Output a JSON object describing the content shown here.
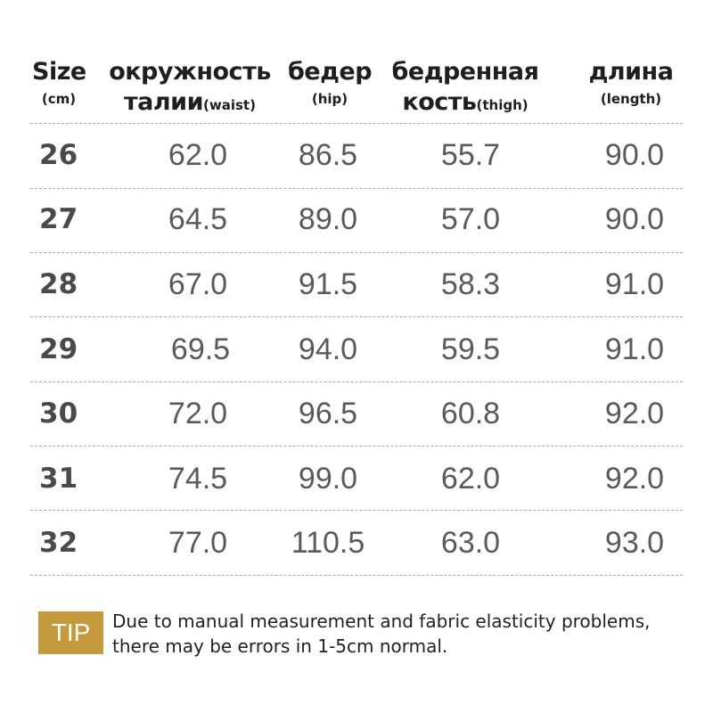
{
  "header": {
    "size": {
      "line1": "Size",
      "line2": "(cm)"
    },
    "waist": {
      "line1": "окружность",
      "line2_main": "талии",
      "line2_sub": "(waist)"
    },
    "hip": {
      "line1": "бедер",
      "line2": "(hip)"
    },
    "thigh": {
      "line1": "бедренная",
      "line2_main": "кость",
      "line2_sub": "(thigh)"
    },
    "length": {
      "line1": "длина",
      "line2": "(length)"
    }
  },
  "rows": [
    {
      "size": "26",
      "waist": "62.0",
      "hip": "86.5",
      "thigh": "55.7",
      "length": "90.0"
    },
    {
      "size": "27",
      "waist": "64.5",
      "hip": "89.0",
      "thigh": "57.0",
      "length": "90.0"
    },
    {
      "size": "28",
      "waist": "67.0",
      "hip": "91.5",
      "thigh": "58.3",
      "length": "91.0"
    },
    {
      "size": "29",
      "waist": "69.5",
      "hip": "94.0",
      "thigh": "59.5",
      "length": "91.0"
    },
    {
      "size": "30",
      "waist": "72.0",
      "hip": "96.5",
      "thigh": "60.8",
      "length": "92.0"
    },
    {
      "size": "31",
      "waist": "74.5",
      "hip": "99.0",
      "thigh": "62.0",
      "length": "92.0"
    },
    {
      "size": "32",
      "waist": "77.0",
      "hip": "110.5",
      "thigh": "63.0",
      "length": "93.0"
    }
  ],
  "tip": {
    "badge": "TIP",
    "line1": "Due to manual measurement and fabric elasticity problems,",
    "line2": "there may be errors in 1-5cm normal."
  },
  "colors": {
    "tip_badge": "#c49a3c",
    "rule": "#a9a9a9"
  }
}
